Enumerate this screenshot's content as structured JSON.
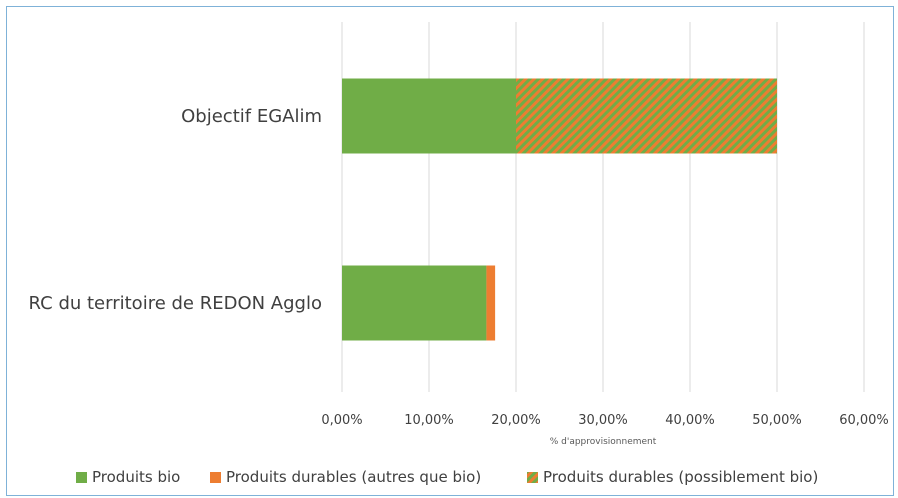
{
  "chart_data": {
    "type": "bar",
    "orientation": "horizontal",
    "stacked": true,
    "categories": [
      "Objectif EGAlim",
      "RC du territoire de REDON Agglo"
    ],
    "series": [
      {
        "name": "Produits bio",
        "values": [
          20,
          16.6
        ],
        "color": "#70ad47",
        "pattern": "solid"
      },
      {
        "name": "Produits durables (autres que bio)",
        "values": [
          0,
          1.0
        ],
        "color": "#ed7d31",
        "pattern": "solid"
      },
      {
        "name": "Produits durables (possiblement bio)",
        "values": [
          30,
          0
        ],
        "color": "#70ad47",
        "pattern": "diagonal-stripes-orange"
      }
    ],
    "xlabel": "% d'approvisionnement",
    "ylabel": "",
    "xlim": [
      0,
      60
    ],
    "xticks": [
      "0,00%",
      "10,00%",
      "20,00%",
      "30,00%",
      "40,00%",
      "50,00%",
      "60,00%"
    ],
    "grid": true,
    "legend_position": "bottom"
  }
}
